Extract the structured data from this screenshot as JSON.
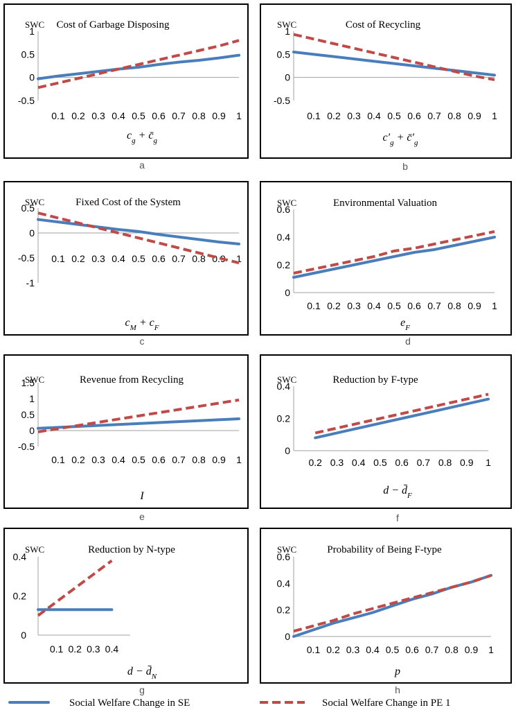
{
  "chart_data": [
    {
      "type": "line",
      "panel_letter": "a",
      "title": "Cost of Garbage Disposing",
      "ylabel": "SWC",
      "xlabel_parts": [
        {
          "t": "c"
        },
        {
          "t": "g",
          "sub": true
        },
        {
          "t": " + "
        },
        {
          "t": "c̄"
        },
        {
          "t": "g",
          "sub": true
        }
      ],
      "ylim": [
        -0.5,
        1
      ],
      "yticks": [
        -0.5,
        0,
        0.5,
        1
      ],
      "ytick_labels": [
        "-0.5",
        "0",
        "0.5",
        "1"
      ],
      "xlim": [
        0,
        1
      ],
      "x": [
        0,
        0.1,
        0.2,
        0.3,
        0.4,
        0.5,
        0.6,
        0.7,
        0.8,
        0.9,
        1
      ],
      "xtick_labels": [
        "0.1",
        "0.2",
        "0.3",
        "0.4",
        "0.5",
        "0.6",
        "0.7",
        "0.8",
        "0.9",
        "1"
      ],
      "series": [
        {
          "name": "Social Welfare Change in SE",
          "values": [
            -0.03,
            0.03,
            0.08,
            0.13,
            0.18,
            0.22,
            0.28,
            0.33,
            0.37,
            0.42,
            0.48
          ]
        },
        {
          "name": "Social Welfare Change in PE 1",
          "values": [
            -0.22,
            -0.12,
            -0.02,
            0.08,
            0.18,
            0.28,
            0.38,
            0.48,
            0.58,
            0.68,
            0.8
          ]
        }
      ]
    },
    {
      "type": "line",
      "panel_letter": "b",
      "title": "Cost of Recycling",
      "ylabel": "SWC",
      "xlabel_parts": [
        {
          "t": "c′"
        },
        {
          "t": "g",
          "sub": true
        },
        {
          "t": " + "
        },
        {
          "t": "c̄′"
        },
        {
          "t": "g",
          "sub": true
        }
      ],
      "ylim": [
        -0.5,
        1
      ],
      "yticks": [
        -0.5,
        0,
        0.5,
        1
      ],
      "ytick_labels": [
        "-0.5",
        "0",
        "0.5",
        "1"
      ],
      "xlim": [
        0,
        1
      ],
      "x": [
        0,
        0.1,
        0.2,
        0.3,
        0.4,
        0.5,
        0.6,
        0.7,
        0.8,
        0.9,
        1
      ],
      "xtick_labels": [
        "0.1",
        "0.2",
        "0.3",
        "0.4",
        "0.5",
        "0.6",
        "0.7",
        "0.8",
        "0.9",
        "1"
      ],
      "series": [
        {
          "name": "Social Welfare Change in SE",
          "values": [
            0.55,
            0.5,
            0.45,
            0.4,
            0.35,
            0.3,
            0.25,
            0.2,
            0.15,
            0.1,
            0.05
          ]
        },
        {
          "name": "Social Welfare Change in PE 1",
          "values": [
            0.93,
            0.83,
            0.73,
            0.63,
            0.53,
            0.43,
            0.33,
            0.23,
            0.13,
            0.03,
            -0.05
          ]
        }
      ]
    },
    {
      "type": "line",
      "panel_letter": "c",
      "title": "Fixed Cost of the System",
      "ylabel": "SWC",
      "xlabel_parts": [
        {
          "t": "c"
        },
        {
          "t": "M",
          "sub": true
        },
        {
          "t": " + "
        },
        {
          "t": "c"
        },
        {
          "t": "F",
          "sub": true
        }
      ],
      "ylim": [
        -1,
        0.5
      ],
      "yticks": [
        -1,
        -0.5,
        0,
        0.5
      ],
      "ytick_labels": [
        "-1",
        "-0.5",
        "0",
        "0.5"
      ],
      "xlim": [
        0,
        1
      ],
      "x": [
        0,
        0.1,
        0.2,
        0.3,
        0.4,
        0.5,
        0.6,
        0.7,
        0.8,
        0.9,
        1
      ],
      "xtick_labels": [
        "0.1",
        "0.2",
        "0.3",
        "0.4",
        "0.5",
        "0.6",
        "0.7",
        "0.8",
        "0.9",
        "1"
      ],
      "series": [
        {
          "name": "Social Welfare Change in SE",
          "values": [
            0.27,
            0.22,
            0.17,
            0.12,
            0.07,
            0.03,
            -0.03,
            -0.08,
            -0.13,
            -0.18,
            -0.22
          ]
        },
        {
          "name": "Social Welfare Change in PE 1",
          "values": [
            0.4,
            0.3,
            0.2,
            0.1,
            0.0,
            -0.1,
            -0.2,
            -0.3,
            -0.4,
            -0.5,
            -0.6
          ]
        }
      ]
    },
    {
      "type": "line",
      "panel_letter": "d",
      "title": "Environmental Valuation",
      "ylabel": "SWC",
      "xlabel_parts": [
        {
          "t": "e"
        },
        {
          "t": "F",
          "sub": true
        }
      ],
      "ylim": [
        0,
        0.6
      ],
      "yticks": [
        0,
        0.2,
        0.4,
        0.6
      ],
      "ytick_labels": [
        "0",
        "0.2",
        "0.4",
        "0.6"
      ],
      "xlim": [
        0,
        1
      ],
      "x": [
        0,
        0.1,
        0.2,
        0.3,
        0.4,
        0.5,
        0.6,
        0.7,
        0.8,
        0.9,
        1
      ],
      "xtick_labels": [
        "0.1",
        "0.2",
        "0.3",
        "0.4",
        "0.5",
        "0.6",
        "0.7",
        "0.8",
        "0.9",
        "1"
      ],
      "series": [
        {
          "name": "Social Welfare Change in SE",
          "values": [
            0.11,
            0.14,
            0.17,
            0.2,
            0.23,
            0.26,
            0.29,
            0.31,
            0.34,
            0.37,
            0.4
          ]
        },
        {
          "name": "Social Welfare Change in PE 1",
          "values": [
            0.14,
            0.17,
            0.2,
            0.23,
            0.26,
            0.3,
            0.32,
            0.35,
            0.38,
            0.41,
            0.44
          ]
        }
      ]
    },
    {
      "type": "line",
      "panel_letter": "e",
      "title": "Revenue from Recycling",
      "ylabel": "SWC",
      "xlabel_parts": [
        {
          "t": "I"
        }
      ],
      "ylim": [
        -0.5,
        1.5
      ],
      "yticks": [
        -0.5,
        0,
        0.5,
        1,
        1.5
      ],
      "ytick_labels": [
        "-0.5",
        "0",
        "0.5",
        "1",
        "1.5"
      ],
      "xlim": [
        0,
        1
      ],
      "x": [
        0,
        0.1,
        0.2,
        0.3,
        0.4,
        0.5,
        0.6,
        0.7,
        0.8,
        0.9,
        1
      ],
      "xtick_labels": [
        "0.1",
        "0.2",
        "0.3",
        "0.4",
        "0.5",
        "0.6",
        "0.7",
        "0.8",
        "0.9",
        "1"
      ],
      "series": [
        {
          "name": "Social Welfare Change in SE",
          "values": [
            0.07,
            0.1,
            0.13,
            0.16,
            0.19,
            0.22,
            0.25,
            0.28,
            0.31,
            0.34,
            0.37
          ]
        },
        {
          "name": "Social Welfare Change in PE 1",
          "values": [
            -0.04,
            0.06,
            0.16,
            0.26,
            0.36,
            0.46,
            0.56,
            0.66,
            0.76,
            0.86,
            0.96
          ]
        }
      ]
    },
    {
      "type": "line",
      "panel_letter": "f",
      "title": "Reduction by F-type",
      "ylabel": "SWC",
      "xlabel_parts": [
        {
          "t": "d − "
        },
        {
          "t": "d̄"
        },
        {
          "t": "F",
          "sub": true
        }
      ],
      "ylim": [
        0,
        0.4
      ],
      "yticks": [
        0,
        0.2,
        0.4
      ],
      "ytick_labels": [
        "0",
        "0.2",
        "0.4"
      ],
      "xlim": [
        0.1,
        1
      ],
      "x": [
        0.2,
        0.3,
        0.4,
        0.5,
        0.6,
        0.7,
        0.8,
        0.9,
        1
      ],
      "xtick_labels": [
        "0.2",
        "0.3",
        "0.4",
        "0.5",
        "0.6",
        "0.7",
        "0.8",
        "0.9",
        "1"
      ],
      "series": [
        {
          "name": "Social Welfare Change in SE",
          "values": [
            0.08,
            0.11,
            0.14,
            0.17,
            0.2,
            0.23,
            0.26,
            0.29,
            0.32
          ]
        },
        {
          "name": "Social Welfare Change in PE 1",
          "values": [
            0.11,
            0.14,
            0.17,
            0.2,
            0.23,
            0.26,
            0.29,
            0.32,
            0.35
          ]
        }
      ]
    },
    {
      "type": "line",
      "panel_letter": "g",
      "title": "Reduction by N-type",
      "ylabel": "SWC",
      "xlabel_parts": [
        {
          "t": "d − "
        },
        {
          "t": "d̄"
        },
        {
          "t": "N",
          "sub": true
        }
      ],
      "ylim": [
        0,
        0.4
      ],
      "yticks": [
        0,
        0.2,
        0.4
      ],
      "ytick_labels": [
        "0",
        "0.2",
        "0.4"
      ],
      "xlim": [
        0,
        0.5
      ],
      "x": [
        0,
        0.1,
        0.2,
        0.3,
        0.4
      ],
      "xtick_labels": [
        "0.1",
        "0.2",
        "0.3",
        "0.4"
      ],
      "series": [
        {
          "name": "Social Welfare Change in SE",
          "values": [
            0.13,
            0.13,
            0.13,
            0.13,
            0.13
          ]
        },
        {
          "name": "Social Welfare Change in PE 1",
          "values": [
            0.1,
            0.17,
            0.24,
            0.31,
            0.38
          ]
        }
      ]
    },
    {
      "type": "line",
      "panel_letter": "h",
      "title": "Probability of Being F-type",
      "ylabel": "SWC",
      "xlabel_parts": [
        {
          "t": "p"
        }
      ],
      "ylim": [
        0,
        0.6
      ],
      "yticks": [
        0,
        0.2,
        0.4,
        0.6
      ],
      "ytick_labels": [
        "0",
        "0.2",
        "0.4",
        "0.6"
      ],
      "xlim": [
        0,
        1
      ],
      "x": [
        0,
        0.1,
        0.2,
        0.3,
        0.4,
        0.5,
        0.6,
        0.7,
        0.8,
        0.9,
        1
      ],
      "xtick_labels": [
        "0.1",
        "0.2",
        "0.3",
        "0.4",
        "0.5",
        "0.6",
        "0.7",
        "0.8",
        "0.9",
        "1"
      ],
      "series": [
        {
          "name": "Social Welfare Change in SE",
          "values": [
            0.0,
            0.05,
            0.1,
            0.14,
            0.18,
            0.23,
            0.28,
            0.32,
            0.37,
            0.41,
            0.46
          ]
        },
        {
          "name": "Social Welfare Change in PE 1",
          "values": [
            0.04,
            0.08,
            0.12,
            0.17,
            0.21,
            0.25,
            0.29,
            0.33,
            0.37,
            0.41,
            0.46
          ]
        }
      ]
    }
  ],
  "legend": {
    "se_label": "Social Welfare Change in SE",
    "pe_label": "Social Welfare Change in PE 1"
  },
  "colors": {
    "se": "#4a7ebb",
    "pe": "#be4b48"
  }
}
